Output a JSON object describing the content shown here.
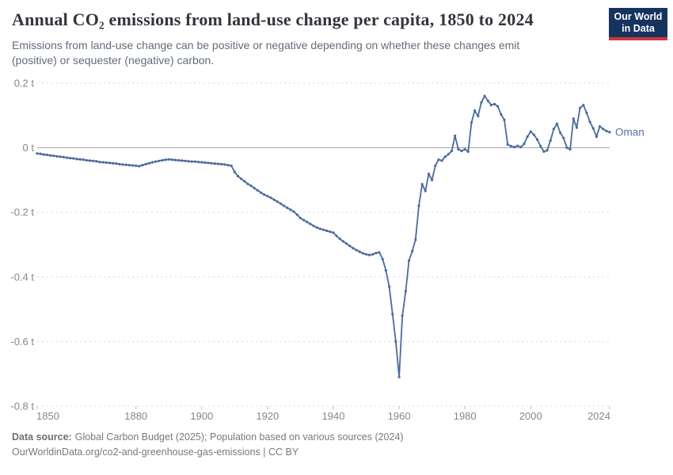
{
  "header": {
    "title": "Annual CO₂ emissions from land-use change per capita, 1850 to 2024",
    "subtitle_lines": [
      "Emissions from land-use change can be positive or negative depending on whether these changes emit",
      "(positive) or sequester (negative) carbon."
    ],
    "logo": {
      "line1": "Our World",
      "line2": "in Data"
    }
  },
  "footer": {
    "source_label": "Data source:",
    "source_text": "Global Carbon Budget (2025); Population based on various sources (2024)",
    "note_text": "OurWorldinData.org/co2-and-greenhouse-gas-emissions | CC BY"
  },
  "colors": {
    "series": "#4c6a9c",
    "entity_label": "#54779f",
    "grid": "#dadada",
    "zero_line": "#a5a5a5",
    "tick_mark": "#b9b9b9",
    "axis_text": "#878787",
    "logo_bg": "#15335e",
    "logo_accent": "#d0353f"
  },
  "chart_data": {
    "type": "line",
    "title": "Annual CO₂ emissions from land-use change per capita, 1850 to 2024",
    "subtitle": "Emissions from land-use change can be positive or negative depending on whether these changes emit (positive) or sequester (negative) carbon.",
    "xlabel": "",
    "ylabel": "",
    "unit": "t",
    "xlim": [
      1850,
      2024
    ],
    "ylim": [
      -0.8,
      0.2
    ],
    "grid": "horizontal-dashed",
    "legend_position": "line-end-label",
    "x_ticks": [
      1850,
      1880,
      1900,
      1920,
      1940,
      1960,
      1980,
      2000,
      2024
    ],
    "y_ticks": [
      {
        "value": 0.2,
        "label": "0.2 t"
      },
      {
        "value": 0,
        "label": "0 t"
      },
      {
        "value": -0.2,
        "label": "-0.2 t"
      },
      {
        "value": -0.4,
        "label": "-0.4 t"
      },
      {
        "value": -0.6,
        "label": "-0.6 t"
      },
      {
        "value": -0.8,
        "label": "-0.8 t"
      }
    ],
    "series": [
      {
        "name": "Oman",
        "color": "#4c6a9c",
        "years": [
          1850,
          1851,
          1852,
          1853,
          1854,
          1855,
          1856,
          1857,
          1858,
          1859,
          1860,
          1861,
          1862,
          1863,
          1864,
          1865,
          1866,
          1867,
          1868,
          1869,
          1870,
          1871,
          1872,
          1873,
          1874,
          1875,
          1876,
          1877,
          1878,
          1879,
          1880,
          1881,
          1882,
          1883,
          1884,
          1885,
          1886,
          1887,
          1888,
          1889,
          1890,
          1891,
          1892,
          1893,
          1894,
          1895,
          1896,
          1897,
          1898,
          1899,
          1900,
          1901,
          1902,
          1903,
          1904,
          1905,
          1906,
          1907,
          1908,
          1909,
          1910,
          1911,
          1912,
          1913,
          1914,
          1915,
          1916,
          1917,
          1918,
          1919,
          1920,
          1921,
          1922,
          1923,
          1924,
          1925,
          1926,
          1927,
          1928,
          1929,
          1930,
          1931,
          1932,
          1933,
          1934,
          1935,
          1936,
          1937,
          1938,
          1939,
          1940,
          1941,
          1942,
          1943,
          1944,
          1945,
          1946,
          1947,
          1948,
          1949,
          1950,
          1951,
          1952,
          1953,
          1954,
          1955,
          1956,
          1957,
          1958,
          1959,
          1960,
          1961,
          1962,
          1963,
          1964,
          1965,
          1966,
          1967,
          1968,
          1969,
          1970,
          1971,
          1972,
          1973,
          1974,
          1975,
          1976,
          1977,
          1978,
          1979,
          1980,
          1981,
          1982,
          1983,
          1984,
          1985,
          1986,
          1987,
          1988,
          1989,
          1990,
          1991,
          1992,
          1993,
          1994,
          1995,
          1996,
          1997,
          1998,
          1999,
          2000,
          2001,
          2002,
          2003,
          2004,
          2005,
          2006,
          2007,
          2008,
          2009,
          2010,
          2011,
          2012,
          2013,
          2014,
          2015,
          2016,
          2017,
          2018,
          2019,
          2020,
          2021,
          2022,
          2023,
          2024
        ],
        "values": [
          -0.018,
          -0.019,
          -0.021,
          -0.022,
          -0.024,
          -0.025,
          -0.027,
          -0.028,
          -0.029,
          -0.031,
          -0.032,
          -0.033,
          -0.035,
          -0.036,
          -0.037,
          -0.039,
          -0.04,
          -0.041,
          -0.042,
          -0.044,
          -0.045,
          -0.046,
          -0.047,
          -0.048,
          -0.049,
          -0.051,
          -0.052,
          -0.053,
          -0.054,
          -0.055,
          -0.056,
          -0.057,
          -0.054,
          -0.051,
          -0.048,
          -0.045,
          -0.043,
          -0.041,
          -0.039,
          -0.037,
          -0.036,
          -0.037,
          -0.038,
          -0.039,
          -0.04,
          -0.041,
          -0.042,
          -0.043,
          -0.043,
          -0.044,
          -0.045,
          -0.046,
          -0.047,
          -0.048,
          -0.049,
          -0.05,
          -0.051,
          -0.052,
          -0.054,
          -0.056,
          -0.075,
          -0.088,
          -0.096,
          -0.104,
          -0.112,
          -0.118,
          -0.125,
          -0.132,
          -0.139,
          -0.145,
          -0.15,
          -0.155,
          -0.161,
          -0.167,
          -0.173,
          -0.18,
          -0.186,
          -0.192,
          -0.198,
          -0.207,
          -0.218,
          -0.224,
          -0.23,
          -0.236,
          -0.242,
          -0.247,
          -0.251,
          -0.254,
          -0.257,
          -0.26,
          -0.263,
          -0.273,
          -0.282,
          -0.29,
          -0.297,
          -0.304,
          -0.311,
          -0.317,
          -0.322,
          -0.327,
          -0.33,
          -0.332,
          -0.33,
          -0.326,
          -0.324,
          -0.345,
          -0.38,
          -0.43,
          -0.515,
          -0.6,
          -0.71,
          -0.52,
          -0.444,
          -0.35,
          -0.32,
          -0.285,
          -0.18,
          -0.113,
          -0.134,
          -0.081,
          -0.1,
          -0.056,
          -0.037,
          -0.04,
          -0.028,
          -0.02,
          -0.01,
          0.037,
          -0.005,
          -0.01,
          -0.005,
          -0.012,
          0.078,
          0.115,
          0.098,
          0.14,
          0.16,
          0.145,
          0.132,
          0.135,
          0.128,
          0.103,
          0.086,
          0.01,
          0.005,
          0.002,
          0.006,
          0.002,
          0.012,
          0.034,
          0.05,
          0.04,
          0.025,
          0.005,
          -0.012,
          -0.008,
          0.022,
          0.058,
          0.074,
          0.046,
          0.03,
          0.0,
          -0.005,
          0.09,
          0.062,
          0.123,
          0.132,
          0.108,
          0.08,
          0.06,
          0.034,
          0.066,
          0.058,
          0.052,
          0.048
        ]
      }
    ]
  }
}
